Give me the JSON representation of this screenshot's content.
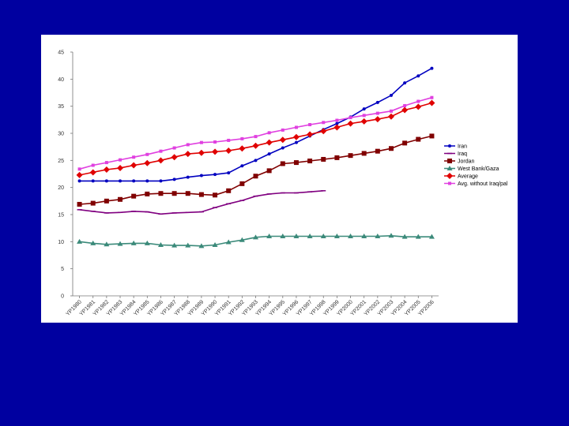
{
  "chart_data": {
    "type": "line",
    "title": "",
    "xlabel": "",
    "ylabel": "",
    "ylim": [
      0,
      45
    ],
    "yticks": [
      0,
      5,
      10,
      15,
      20,
      25,
      30,
      35,
      40,
      45
    ],
    "grid": false,
    "legend_position": "right",
    "categories": [
      "YP1980",
      "YP1981",
      "YP1982",
      "YP1983",
      "YP1984",
      "YP1985",
      "YP1986",
      "YP1987",
      "YP1988",
      "YP1989",
      "YP1990",
      "YP1991",
      "YP1992",
      "YP1993",
      "YP1994",
      "YP1995",
      "YP1996",
      "YP1997",
      "YP1998",
      "YP1999",
      "YP2000",
      "YP2001",
      "YP2002",
      "YP2003",
      "YP2004",
      "YP2005",
      "YP2006"
    ],
    "series": [
      {
        "name": "Iran",
        "color": "#0000c0",
        "marker": "circle",
        "values": [
          21.2,
          21.2,
          21.2,
          21.2,
          21.2,
          21.2,
          21.2,
          21.5,
          21.9,
          22.2,
          22.4,
          22.7,
          24.0,
          25.0,
          26.2,
          27.3,
          28.3,
          29.5,
          30.7,
          31.8,
          33.0,
          34.5,
          35.7,
          37.0,
          39.3,
          40.6,
          42.0
        ]
      },
      {
        "name": "Iraq",
        "color": "#800080",
        "marker": "dash",
        "values": [
          15.9,
          15.6,
          15.3,
          15.4,
          15.6,
          15.5,
          15.1,
          15.3,
          15.4,
          15.5,
          16.3,
          17.0,
          17.6,
          18.4,
          18.8,
          19.0,
          19.0,
          19.2,
          19.4,
          null,
          null,
          null,
          null,
          null,
          null,
          null,
          null
        ]
      },
      {
        "name": "Jordan",
        "color": "#800000",
        "marker": "square",
        "values": [
          16.9,
          17.1,
          17.5,
          17.8,
          18.4,
          18.8,
          18.9,
          18.9,
          18.9,
          18.7,
          18.6,
          19.4,
          20.7,
          22.1,
          23.1,
          24.4,
          24.6,
          24.9,
          25.2,
          25.5,
          25.9,
          26.3,
          26.7,
          27.2,
          28.2,
          28.9,
          29.5
        ]
      },
      {
        "name": "West Bank/Gaza",
        "color": "#3b8a7a",
        "marker": "triangle",
        "values": [
          10.0,
          9.7,
          9.5,
          9.6,
          9.7,
          9.7,
          9.4,
          9.3,
          9.3,
          9.2,
          9.4,
          9.9,
          10.3,
          10.8,
          11.0,
          11.0,
          11.0,
          11.0,
          11.0,
          11.0,
          11.0,
          11.0,
          11.0,
          11.1,
          10.9,
          10.9,
          10.9
        ]
      },
      {
        "name": "Average",
        "color": "#e00000",
        "marker": "diamond",
        "values": [
          22.3,
          22.8,
          23.3,
          23.6,
          24.1,
          24.5,
          25.0,
          25.6,
          26.2,
          26.4,
          26.6,
          26.8,
          27.2,
          27.7,
          28.3,
          28.8,
          29.3,
          29.8,
          30.4,
          31.1,
          31.8,
          32.2,
          32.6,
          33.1,
          34.3,
          34.9,
          35.6
        ]
      },
      {
        "name": "Avg. without Iraq/pal",
        "color": "#e040e0",
        "marker": "small-square",
        "values": [
          23.4,
          24.1,
          24.6,
          25.1,
          25.6,
          26.1,
          26.7,
          27.3,
          27.9,
          28.3,
          28.4,
          28.7,
          29.0,
          29.4,
          30.1,
          30.6,
          31.1,
          31.6,
          32.0,
          32.4,
          32.9,
          33.3,
          33.7,
          34.1,
          35.1,
          35.9,
          36.6
        ]
      }
    ]
  }
}
